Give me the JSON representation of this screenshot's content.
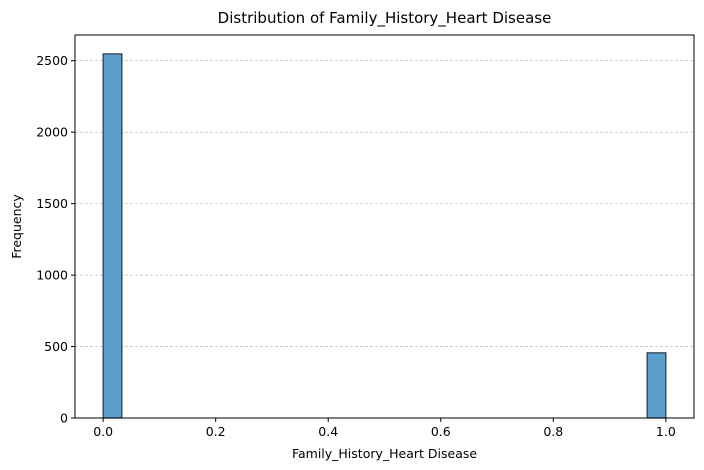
{
  "chart_data": {
    "type": "bar",
    "chart_kind": "histogram",
    "title": "Distribution of Family_History_Heart Disease",
    "xlabel": "Family_History_Heart Disease",
    "ylabel": "Frequency",
    "xlim": [
      -0.05,
      1.05
    ],
    "ylim": [
      0,
      2680
    ],
    "xticks": [
      0.0,
      0.2,
      0.4,
      0.6,
      0.8,
      1.0
    ],
    "xtick_labels": [
      "0.0",
      "0.2",
      "0.4",
      "0.6",
      "0.8",
      "1.0"
    ],
    "yticks": [
      0,
      500,
      1000,
      1500,
      2000,
      2500
    ],
    "ytick_labels": [
      "0",
      "500",
      "1000",
      "1500",
      "2000",
      "2500"
    ],
    "grid": "y-dashed",
    "bins": [
      {
        "x0": 0.0,
        "x1": 0.0333,
        "count": 2548
      },
      {
        "x0": 0.9667,
        "x1": 1.0,
        "count": 456
      }
    ],
    "colors": {
      "bar_fill": "#5b9fcd",
      "bar_edge": "#2a3640",
      "grid": "#b0b0b0",
      "axis": "#000000"
    }
  }
}
